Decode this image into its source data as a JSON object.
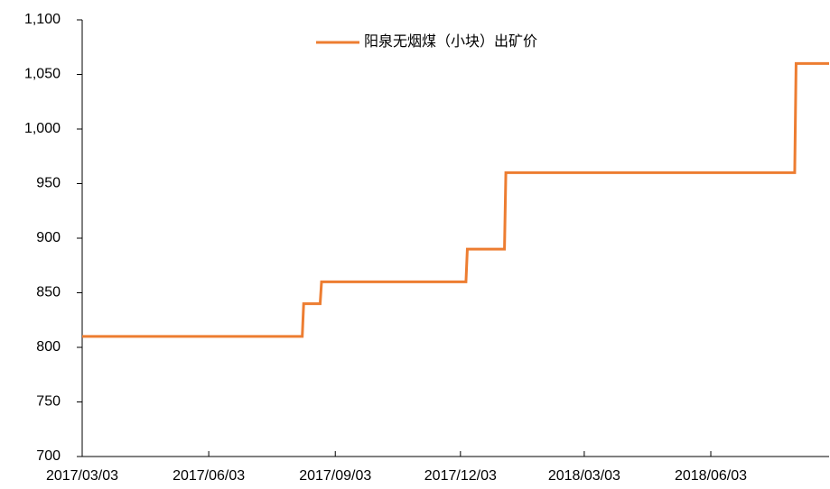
{
  "chart_data": {
    "type": "line",
    "x": [
      "2017/03/03",
      "2017/08/10",
      "2017/08/11",
      "2017/08/23",
      "2017/08/24",
      "2017/12/07",
      "2017/12/08",
      "2018/01/04",
      "2018/01/05",
      "2018/08/03",
      "2018/08/04",
      "2018/08/28"
    ],
    "series": [
      {
        "name": "阳泉无烟煤（小块）出矿价",
        "color": "#ED7D31",
        "values": [
          810,
          810,
          840,
          840,
          860,
          860,
          890,
          890,
          960,
          960,
          1060,
          1060
        ]
      }
    ],
    "xlim": [
      "2017/03/03",
      "2018/08/28"
    ],
    "xticks": [
      "2017/03/03",
      "2017/06/03",
      "2017/09/03",
      "2017/12/03",
      "2018/03/03",
      "2018/06/03"
    ],
    "ylim": [
      700,
      1100
    ],
    "yticks": [
      700,
      750,
      800,
      850,
      900,
      950,
      {
        "value": 1000,
        "label": "1,000"
      },
      {
        "value": 1050,
        "label": "1,050"
      },
      {
        "value": 1100,
        "label": "1,100"
      }
    ],
    "grid": false,
    "legend": "top"
  }
}
